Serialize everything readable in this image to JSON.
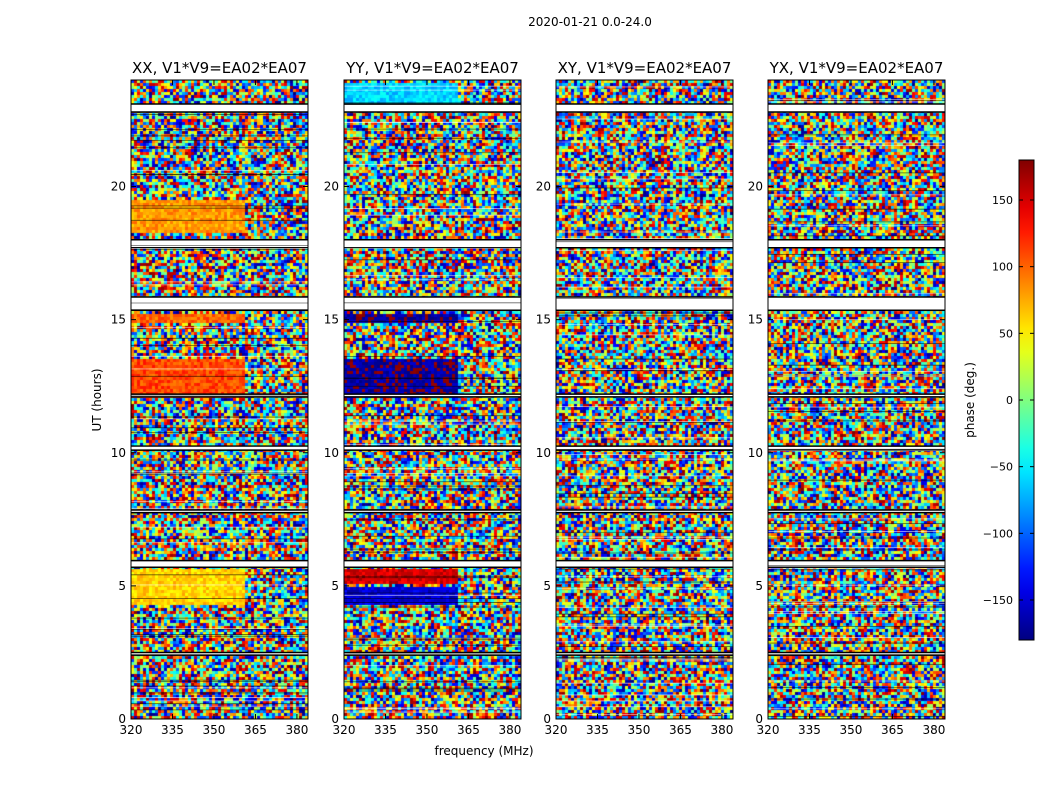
{
  "chart_data": {
    "type": "heatmap",
    "suptitle": "2020-01-21 0.0-24.0",
    "xlabel": "frequency (MHz)",
    "ylabel": "UT (hours)",
    "xlim": [
      320,
      384
    ],
    "ylim": [
      0,
      24
    ],
    "xticks": [
      "320",
      "335",
      "350",
      "365",
      "380"
    ],
    "xtick_values": [
      320,
      335,
      350,
      365,
      380
    ],
    "yticks": [
      "0",
      "5",
      "10",
      "15",
      "20"
    ],
    "ytick_values": [
      0,
      5,
      10,
      15,
      20
    ],
    "colorbar": {
      "label": "phase (deg.)",
      "range": [
        -180,
        180
      ],
      "ticks": [
        "150",
        "100",
        "50",
        "0",
        "−50",
        "−100",
        "−150"
      ],
      "tick_values": [
        150,
        100,
        50,
        0,
        -50,
        -100,
        -150
      ],
      "colormap": "jet"
    },
    "panels": [
      {
        "title": "XX, V1*V9=EA02*EA07",
        "correlation": "XX"
      },
      {
        "title": "YY, V1*V9=EA02*EA07",
        "correlation": "YY"
      },
      {
        "title": "XY, V1*V9=EA02*EA07",
        "correlation": "XY"
      },
      {
        "title": "YX, V1*V9=EA02*EA07",
        "correlation": "YX"
      }
    ],
    "gaps_ut_hours": [
      [
        22.8,
        23.1
      ],
      [
        17.7,
        18.0
      ],
      [
        15.85,
        15.35
      ],
      [
        5.7,
        5.95
      ],
      [
        2.4,
        2.5
      ],
      [
        7.85,
        7.75
      ],
      [
        10.25,
        10.1
      ],
      [
        12.2,
        12.1
      ]
    ],
    "coherent_bands": [
      {
        "panel": "XX",
        "ut": [
          12.1,
          13.5
        ],
        "phase_deg": 110,
        "freq_upto_mhz": 361
      },
      {
        "panel": "XX",
        "ut": [
          4.3,
          5.6
        ],
        "phase_deg": 60,
        "freq_upto_mhz": 361
      },
      {
        "panel": "XX",
        "ut": [
          14.9,
          15.2
        ],
        "phase_deg": 100,
        "freq_upto_mhz": 361
      },
      {
        "panel": "XX",
        "ut": [
          18.2,
          19.5
        ],
        "phase_deg": 80,
        "freq_upto_mhz": 361
      },
      {
        "panel": "YY",
        "ut": [
          12.1,
          13.5
        ],
        "phase_deg": -170,
        "freq_upto_mhz": 361
      },
      {
        "panel": "YY",
        "ut": [
          5.1,
          5.6
        ],
        "phase_deg": 150,
        "freq_upto_mhz": 361
      },
      {
        "panel": "YY",
        "ut": [
          4.3,
          5.0
        ],
        "phase_deg": -150,
        "freq_upto_mhz": 361
      },
      {
        "panel": "YY",
        "ut": [
          14.9,
          15.2
        ],
        "phase_deg": -170,
        "freq_upto_mhz": 361
      },
      {
        "panel": "YY",
        "ut": [
          23.1,
          23.9
        ],
        "phase_deg": -60,
        "freq_upto_mhz": 361
      }
    ]
  }
}
